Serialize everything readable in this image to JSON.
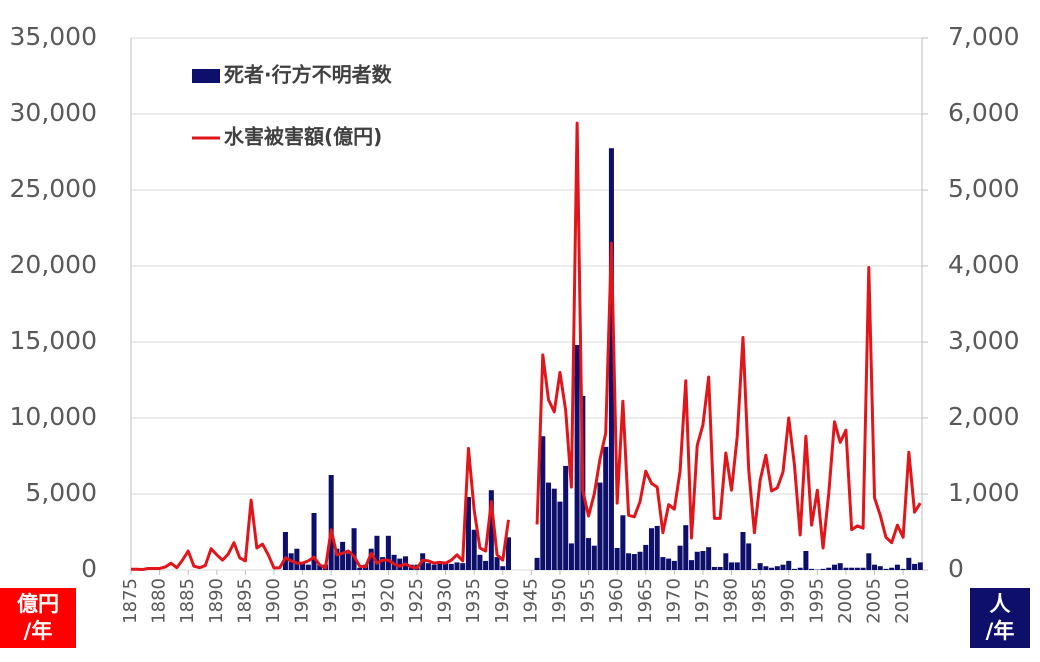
{
  "chart_data": {
    "type": "bar",
    "series": [
      {
        "name": "死者·行方不明者数",
        "type": "bar",
        "axis": "y2",
        "color": "#0e0f6b",
        "values": [
          null,
          null,
          null,
          null,
          null,
          null,
          null,
          null,
          null,
          null,
          null,
          null,
          null,
          null,
          null,
          null,
          null,
          null,
          null,
          null,
          null,
          null,
          null,
          null,
          null,
          null,
          null,
          500,
          220,
          280,
          90,
          70,
          750,
          70,
          70,
          1250,
          280,
          370,
          220,
          550,
          30,
          70,
          280,
          450,
          170,
          450,
          200,
          150,
          180,
          70,
          70,
          220,
          90,
          70,
          100,
          100,
          80,
          100,
          90,
          960,
          530,
          200,
          120,
          1050,
          170,
          50,
          430,
          null,
          null,
          null,
          null,
          160,
          1760,
          1150,
          1070,
          900,
          1370,
          350,
          2960,
          2290,
          420,
          320,
          1150,
          1620,
          5550,
          290,
          720,
          220,
          210,
          240,
          330,
          550,
          580,
          170,
          150,
          120,
          320,
          590,
          130,
          240,
          250,
          300,
          40,
          40,
          220,
          100,
          100,
          500,
          350,
          15,
          90,
          50,
          30,
          50,
          70,
          120,
          15,
          30,
          250,
          15,
          5,
          15,
          30,
          70,
          90,
          30,
          30,
          30,
          30,
          220,
          70,
          50,
          15,
          30,
          70,
          15,
          160,
          80,
          100
        ]
      },
      {
        "name": "水害被害額(億円)",
        "type": "line",
        "color": "#e0161b",
        "values": [
          50,
          50,
          30,
          100,
          100,
          100,
          200,
          450,
          150,
          650,
          1250,
          250,
          150,
          300,
          1400,
          1000,
          650,
          1050,
          1800,
          800,
          600,
          4600,
          1450,
          1700,
          1000,
          130,
          150,
          800,
          600,
          450,
          450,
          600,
          850,
          330,
          130,
          2650,
          1000,
          1100,
          1250,
          900,
          250,
          200,
          1100,
          450,
          650,
          650,
          400,
          250,
          400,
          200,
          130,
          650,
          600,
          450,
          500,
          450,
          650,
          1000,
          600,
          8000,
          3950,
          1450,
          1250,
          4500,
          1000,
          650,
          3300,
          null,
          null,
          null,
          null,
          3000,
          14150,
          11200,
          10400,
          13000,
          10500,
          5450,
          29400,
          5200,
          3550,
          5000,
          7300,
          9000,
          21500,
          4400,
          11100,
          3600,
          3500,
          4500,
          6500,
          5700,
          5450,
          2450,
          4300,
          4000,
          6500,
          12450,
          2100,
          8200,
          9550,
          12700,
          3400,
          3400,
          7700,
          5250,
          8800,
          15300,
          6600,
          2450,
          5900,
          7550,
          5200,
          5400,
          6450,
          10000,
          6900,
          2300,
          8800,
          2950,
          5250,
          1450,
          5050,
          9750,
          8400,
          9200,
          2650,
          2900,
          2750,
          19900,
          4750,
          3600,
          2150,
          1800,
          2950,
          2150,
          7750,
          3800,
          4400
        ]
      }
    ],
    "x": [
      1875,
      1876,
      1877,
      1878,
      1879,
      1880,
      1881,
      1882,
      1883,
      1884,
      1885,
      1886,
      1887,
      1888,
      1889,
      1890,
      1891,
      1892,
      1893,
      1894,
      1895,
      1896,
      1897,
      1898,
      1899,
      1900,
      1901,
      1902,
      1903,
      1904,
      1905,
      1906,
      1907,
      1908,
      1909,
      1910,
      1911,
      1912,
      1913,
      1914,
      1915,
      1916,
      1917,
      1918,
      1919,
      1920,
      1921,
      1922,
      1923,
      1924,
      1925,
      1926,
      1927,
      1928,
      1929,
      1930,
      1931,
      1932,
      1933,
      1934,
      1935,
      1936,
      1937,
      1938,
      1939,
      1940,
      1941,
      1942,
      1943,
      1944,
      1945,
      1946,
      1947,
      1948,
      1949,
      1950,
      1951,
      1952,
      1953,
      1954,
      1955,
      1956,
      1957,
      1958,
      1959,
      1960,
      1961,
      1962,
      1963,
      1964,
      1965,
      1966,
      1967,
      1968,
      1969,
      1970,
      1971,
      1972,
      1973,
      1974,
      1975,
      1976,
      1977,
      1978,
      1979,
      1980,
      1981,
      1982,
      1983,
      1984,
      1985,
      1986,
      1987,
      1988,
      1989,
      1990,
      1991,
      1992,
      1993,
      1994,
      1995,
      1996,
      1997,
      1998,
      1999,
      2000,
      2001,
      2002,
      2003,
      2004,
      2005,
      2006,
      2007,
      2008,
      2009,
      2010,
      2011,
      2012,
      2013
    ],
    "xlim": [
      1875,
      2013.3
    ],
    "xticks": [
      1875,
      1880,
      1885,
      1890,
      1895,
      1900,
      1905,
      1910,
      1915,
      1920,
      1925,
      1930,
      1935,
      1940,
      1945,
      1950,
      1955,
      1960,
      1965,
      1970,
      1975,
      1980,
      1985,
      1990,
      1995,
      2000,
      2005,
      2010
    ],
    "ylim": [
      0,
      35000
    ],
    "yticks": [
      0,
      {
        "value": 5000,
        "label": "5,000"
      },
      {
        "value": 10000,
        "label": "10,000"
      },
      {
        "value": 15000,
        "label": "15,000"
      },
      {
        "value": 20000,
        "label": "20,000"
      },
      {
        "value": 25000,
        "label": "25,000"
      },
      {
        "value": 30000,
        "label": "30,000"
      },
      {
        "value": 35000,
        "label": "35,000"
      }
    ],
    "y2lim": [
      0,
      7000
    ],
    "y2ticks": [
      0,
      {
        "value": 1000,
        "label": "1,000"
      },
      {
        "value": 2000,
        "label": "2,000"
      },
      {
        "value": 3000,
        "label": "3,000"
      },
      {
        "value": 4000,
        "label": "4,000"
      },
      {
        "value": 5000,
        "label": "5,000"
      },
      {
        "value": 6000,
        "label": "6,000"
      },
      {
        "value": 7000,
        "label": "7,000"
      }
    ],
    "y_unit": [
      "億円",
      "/年"
    ],
    "y2_unit": [
      "人",
      "/年"
    ],
    "grid": true,
    "legend": "upper left"
  }
}
